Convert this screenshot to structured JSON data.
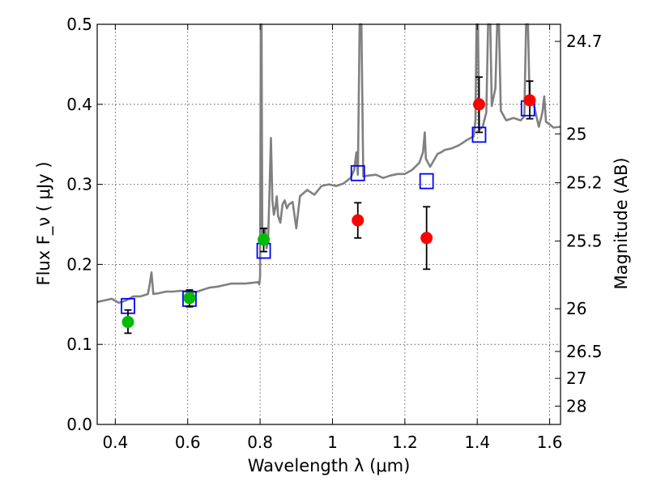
{
  "chart_data": {
    "type": "scatter",
    "xlabel": "Wavelength  λ (μm)",
    "ylabel": "Flux  F_ν  ( μJy )",
    "ylabel_right": "Magnitude (AB)",
    "xlim": [
      0.35,
      1.63
    ],
    "ylim": [
      0.0,
      0.5
    ],
    "x_ticks": [
      0.4,
      0.6,
      0.8,
      1.0,
      1.2,
      1.4,
      1.6
    ],
    "x_tick_labels": [
      "0.4",
      "0.6",
      "0.8",
      "1",
      "1.2",
      "1.4",
      "1.6"
    ],
    "y_ticks": [
      0.0,
      0.1,
      0.2,
      0.3,
      0.4,
      0.5
    ],
    "y_tick_labels": [
      "0.0",
      "0.1",
      "0.2",
      "0.3",
      "0.4",
      "0.5"
    ],
    "right_ticks": [
      {
        "label": "24.7",
        "mag": 24.7
      },
      {
        "label": "25",
        "mag": 25.0
      },
      {
        "label": "25.2",
        "mag": 25.2
      },
      {
        "label": "25.5",
        "mag": 25.5
      },
      {
        "label": "26",
        "mag": 26.0
      },
      {
        "label": "26.5",
        "mag": 26.5
      },
      {
        "label": "27",
        "mag": 27.0
      },
      {
        "label": "28",
        "mag": 28.0
      }
    ],
    "grid": true,
    "colors": {
      "spectrum": "#808080",
      "model_box": "#0000ff",
      "green": "#00bb00",
      "red": "#ff0000",
      "error": "#000000"
    },
    "series": [
      {
        "kind": "line",
        "points": [
          [
            0.35,
            0.153
          ],
          [
            0.37,
            0.155
          ],
          [
            0.39,
            0.157
          ],
          [
            0.41,
            0.152
          ],
          [
            0.43,
            0.155
          ],
          [
            0.45,
            0.16
          ],
          [
            0.47,
            0.16
          ],
          [
            0.49,
            0.163
          ],
          [
            0.495,
            0.175
          ],
          [
            0.5,
            0.19
          ],
          [
            0.505,
            0.163
          ],
          [
            0.52,
            0.164
          ],
          [
            0.54,
            0.166
          ],
          [
            0.56,
            0.166
          ],
          [
            0.58,
            0.167
          ],
          [
            0.6,
            0.166
          ],
          [
            0.62,
            0.165
          ],
          [
            0.64,
            0.168
          ],
          [
            0.66,
            0.171
          ],
          [
            0.68,
            0.172
          ],
          [
            0.7,
            0.174
          ],
          [
            0.72,
            0.176
          ],
          [
            0.74,
            0.176
          ],
          [
            0.76,
            0.176
          ],
          [
            0.78,
            0.177
          ],
          [
            0.795,
            0.178
          ],
          [
            0.798,
            0.175
          ],
          [
            0.8,
            0.185
          ],
          [
            0.802,
            0.5
          ],
          [
            0.804,
            0.5
          ],
          [
            0.806,
            0.24
          ],
          [
            0.81,
            0.236
          ],
          [
            0.815,
            0.245
          ],
          [
            0.818,
            0.22
          ],
          [
            0.822,
            0.228
          ],
          [
            0.826,
            0.29
          ],
          [
            0.83,
            0.358
          ],
          [
            0.834,
            0.28
          ],
          [
            0.838,
            0.262
          ],
          [
            0.842,
            0.27
          ],
          [
            0.846,
            0.285
          ],
          [
            0.85,
            0.26
          ],
          [
            0.856,
            0.252
          ],
          [
            0.862,
            0.275
          ],
          [
            0.868,
            0.28
          ],
          [
            0.874,
            0.27
          ],
          [
            0.88,
            0.275
          ],
          [
            0.89,
            0.278
          ],
          [
            0.9,
            0.245
          ],
          [
            0.91,
            0.285
          ],
          [
            0.93,
            0.293
          ],
          [
            0.95,
            0.287
          ],
          [
            0.97,
            0.298
          ],
          [
            0.99,
            0.3
          ],
          [
            1.01,
            0.298
          ],
          [
            1.03,
            0.301
          ],
          [
            1.05,
            0.308
          ],
          [
            1.06,
            0.318
          ],
          [
            1.066,
            0.34
          ],
          [
            1.07,
            0.312
          ],
          [
            1.075,
            0.5
          ],
          [
            1.08,
            0.5
          ],
          [
            1.085,
            0.31
          ],
          [
            1.1,
            0.311
          ],
          [
            1.12,
            0.312
          ],
          [
            1.14,
            0.308
          ],
          [
            1.16,
            0.311
          ],
          [
            1.18,
            0.313
          ],
          [
            1.2,
            0.313
          ],
          [
            1.22,
            0.318
          ],
          [
            1.24,
            0.327
          ],
          [
            1.25,
            0.34
          ],
          [
            1.255,
            0.365
          ],
          [
            1.258,
            0.332
          ],
          [
            1.27,
            0.322
          ],
          [
            1.29,
            0.338
          ],
          [
            1.3,
            0.34
          ],
          [
            1.31,
            0.343
          ],
          [
            1.33,
            0.345
          ],
          [
            1.35,
            0.349
          ],
          [
            1.37,
            0.355
          ],
          [
            1.39,
            0.36
          ],
          [
            1.395,
            0.38
          ],
          [
            1.398,
            0.5
          ],
          [
            1.402,
            0.5
          ],
          [
            1.405,
            0.368
          ],
          [
            1.415,
            0.372
          ],
          [
            1.425,
            0.39
          ],
          [
            1.43,
            0.5
          ],
          [
            1.436,
            0.5
          ],
          [
            1.44,
            0.398
          ],
          [
            1.45,
            0.42
          ],
          [
            1.455,
            0.5
          ],
          [
            1.46,
            0.5
          ],
          [
            1.465,
            0.392
          ],
          [
            1.48,
            0.38
          ],
          [
            1.5,
            0.383
          ],
          [
            1.52,
            0.38
          ],
          [
            1.53,
            0.385
          ],
          [
            1.535,
            0.5
          ],
          [
            1.54,
            0.5
          ],
          [
            1.545,
            0.4
          ],
          [
            1.555,
            0.402
          ],
          [
            1.57,
            0.372
          ],
          [
            1.58,
            0.39
          ],
          [
            1.585,
            0.41
          ],
          [
            1.59,
            0.378
          ],
          [
            1.6,
            0.375
          ],
          [
            1.61,
            0.371
          ],
          [
            1.63,
            0.372
          ]
        ]
      },
      {
        "kind": "box",
        "points": [
          [
            0.435,
            0.148
          ],
          [
            0.605,
            0.157
          ],
          [
            0.81,
            0.217
          ],
          [
            1.07,
            0.314
          ],
          [
            1.26,
            0.304
          ],
          [
            1.405,
            0.362
          ],
          [
            1.54,
            0.395
          ]
        ]
      },
      {
        "kind": "green",
        "points": [
          [
            0.435,
            0.128,
            0.114,
            0.143
          ],
          [
            0.605,
            0.158,
            0.147,
            0.168
          ],
          [
            0.81,
            0.231,
            0.216,
            0.245
          ]
        ]
      },
      {
        "kind": "red",
        "points": [
          [
            1.07,
            0.255,
            0.233,
            0.277
          ],
          [
            1.26,
            0.233,
            0.194,
            0.272
          ],
          [
            1.405,
            0.4,
            0.365,
            0.434
          ],
          [
            1.545,
            0.405,
            0.382,
            0.429
          ]
        ]
      }
    ]
  }
}
